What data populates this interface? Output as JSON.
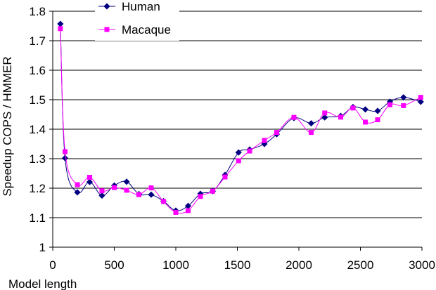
{
  "chart_data": {
    "type": "line",
    "xlabel": "Model length",
    "ylabel": "Speedup COPS / HMMER",
    "xlim": [
      0,
      3000
    ],
    "ylim": [
      1,
      1.8
    ],
    "x_ticks": [
      "0",
      "500",
      "1000",
      "1500",
      "2000",
      "2500",
      "3000"
    ],
    "y_ticks": [
      "1",
      "1.1",
      "1.2",
      "1.3",
      "1.4",
      "1.5",
      "1.6",
      "1.7",
      "1.8"
    ],
    "grid": "horizontal",
    "legend_position": "top-left",
    "series": [
      {
        "name": "Human",
        "color": "#000080",
        "marker": "diamond",
        "points": [
          [
            62,
            1.757
          ],
          [
            100,
            1.302
          ],
          [
            200,
            1.186
          ],
          [
            300,
            1.221
          ],
          [
            400,
            1.175
          ],
          [
            500,
            1.209
          ],
          [
            600,
            1.222
          ],
          [
            700,
            1.18
          ],
          [
            800,
            1.178
          ],
          [
            900,
            1.156
          ],
          [
            1000,
            1.124
          ],
          [
            1100,
            1.14
          ],
          [
            1200,
            1.181
          ],
          [
            1300,
            1.19
          ],
          [
            1400,
            1.245
          ],
          [
            1510,
            1.321
          ],
          [
            1600,
            1.331
          ],
          [
            1720,
            1.35
          ],
          [
            1820,
            1.383
          ],
          [
            1960,
            1.438
          ],
          [
            2100,
            1.42
          ],
          [
            2210,
            1.44
          ],
          [
            2340,
            1.445
          ],
          [
            2440,
            1.475
          ],
          [
            2540,
            1.467
          ],
          [
            2640,
            1.462
          ],
          [
            2740,
            1.493
          ],
          [
            2850,
            1.508
          ],
          [
            2990,
            1.493
          ]
        ]
      },
      {
        "name": "Macaque",
        "color": "#ff00ff",
        "marker": "square",
        "points": [
          [
            62,
            1.741
          ],
          [
            100,
            1.324
          ],
          [
            200,
            1.212
          ],
          [
            300,
            1.237
          ],
          [
            400,
            1.191
          ],
          [
            500,
            1.202
          ],
          [
            600,
            1.193
          ],
          [
            700,
            1.178
          ],
          [
            800,
            1.201
          ],
          [
            900,
            1.155
          ],
          [
            1000,
            1.118
          ],
          [
            1100,
            1.124
          ],
          [
            1200,
            1.172
          ],
          [
            1300,
            1.19
          ],
          [
            1400,
            1.238
          ],
          [
            1510,
            1.293
          ],
          [
            1600,
            1.326
          ],
          [
            1720,
            1.362
          ],
          [
            1820,
            1.389
          ],
          [
            1960,
            1.44
          ],
          [
            2100,
            1.389
          ],
          [
            2210,
            1.455
          ],
          [
            2340,
            1.441
          ],
          [
            2440,
            1.472
          ],
          [
            2540,
            1.424
          ],
          [
            2640,
            1.432
          ],
          [
            2740,
            1.483
          ],
          [
            2850,
            1.48
          ],
          [
            2990,
            1.508
          ]
        ]
      }
    ]
  }
}
